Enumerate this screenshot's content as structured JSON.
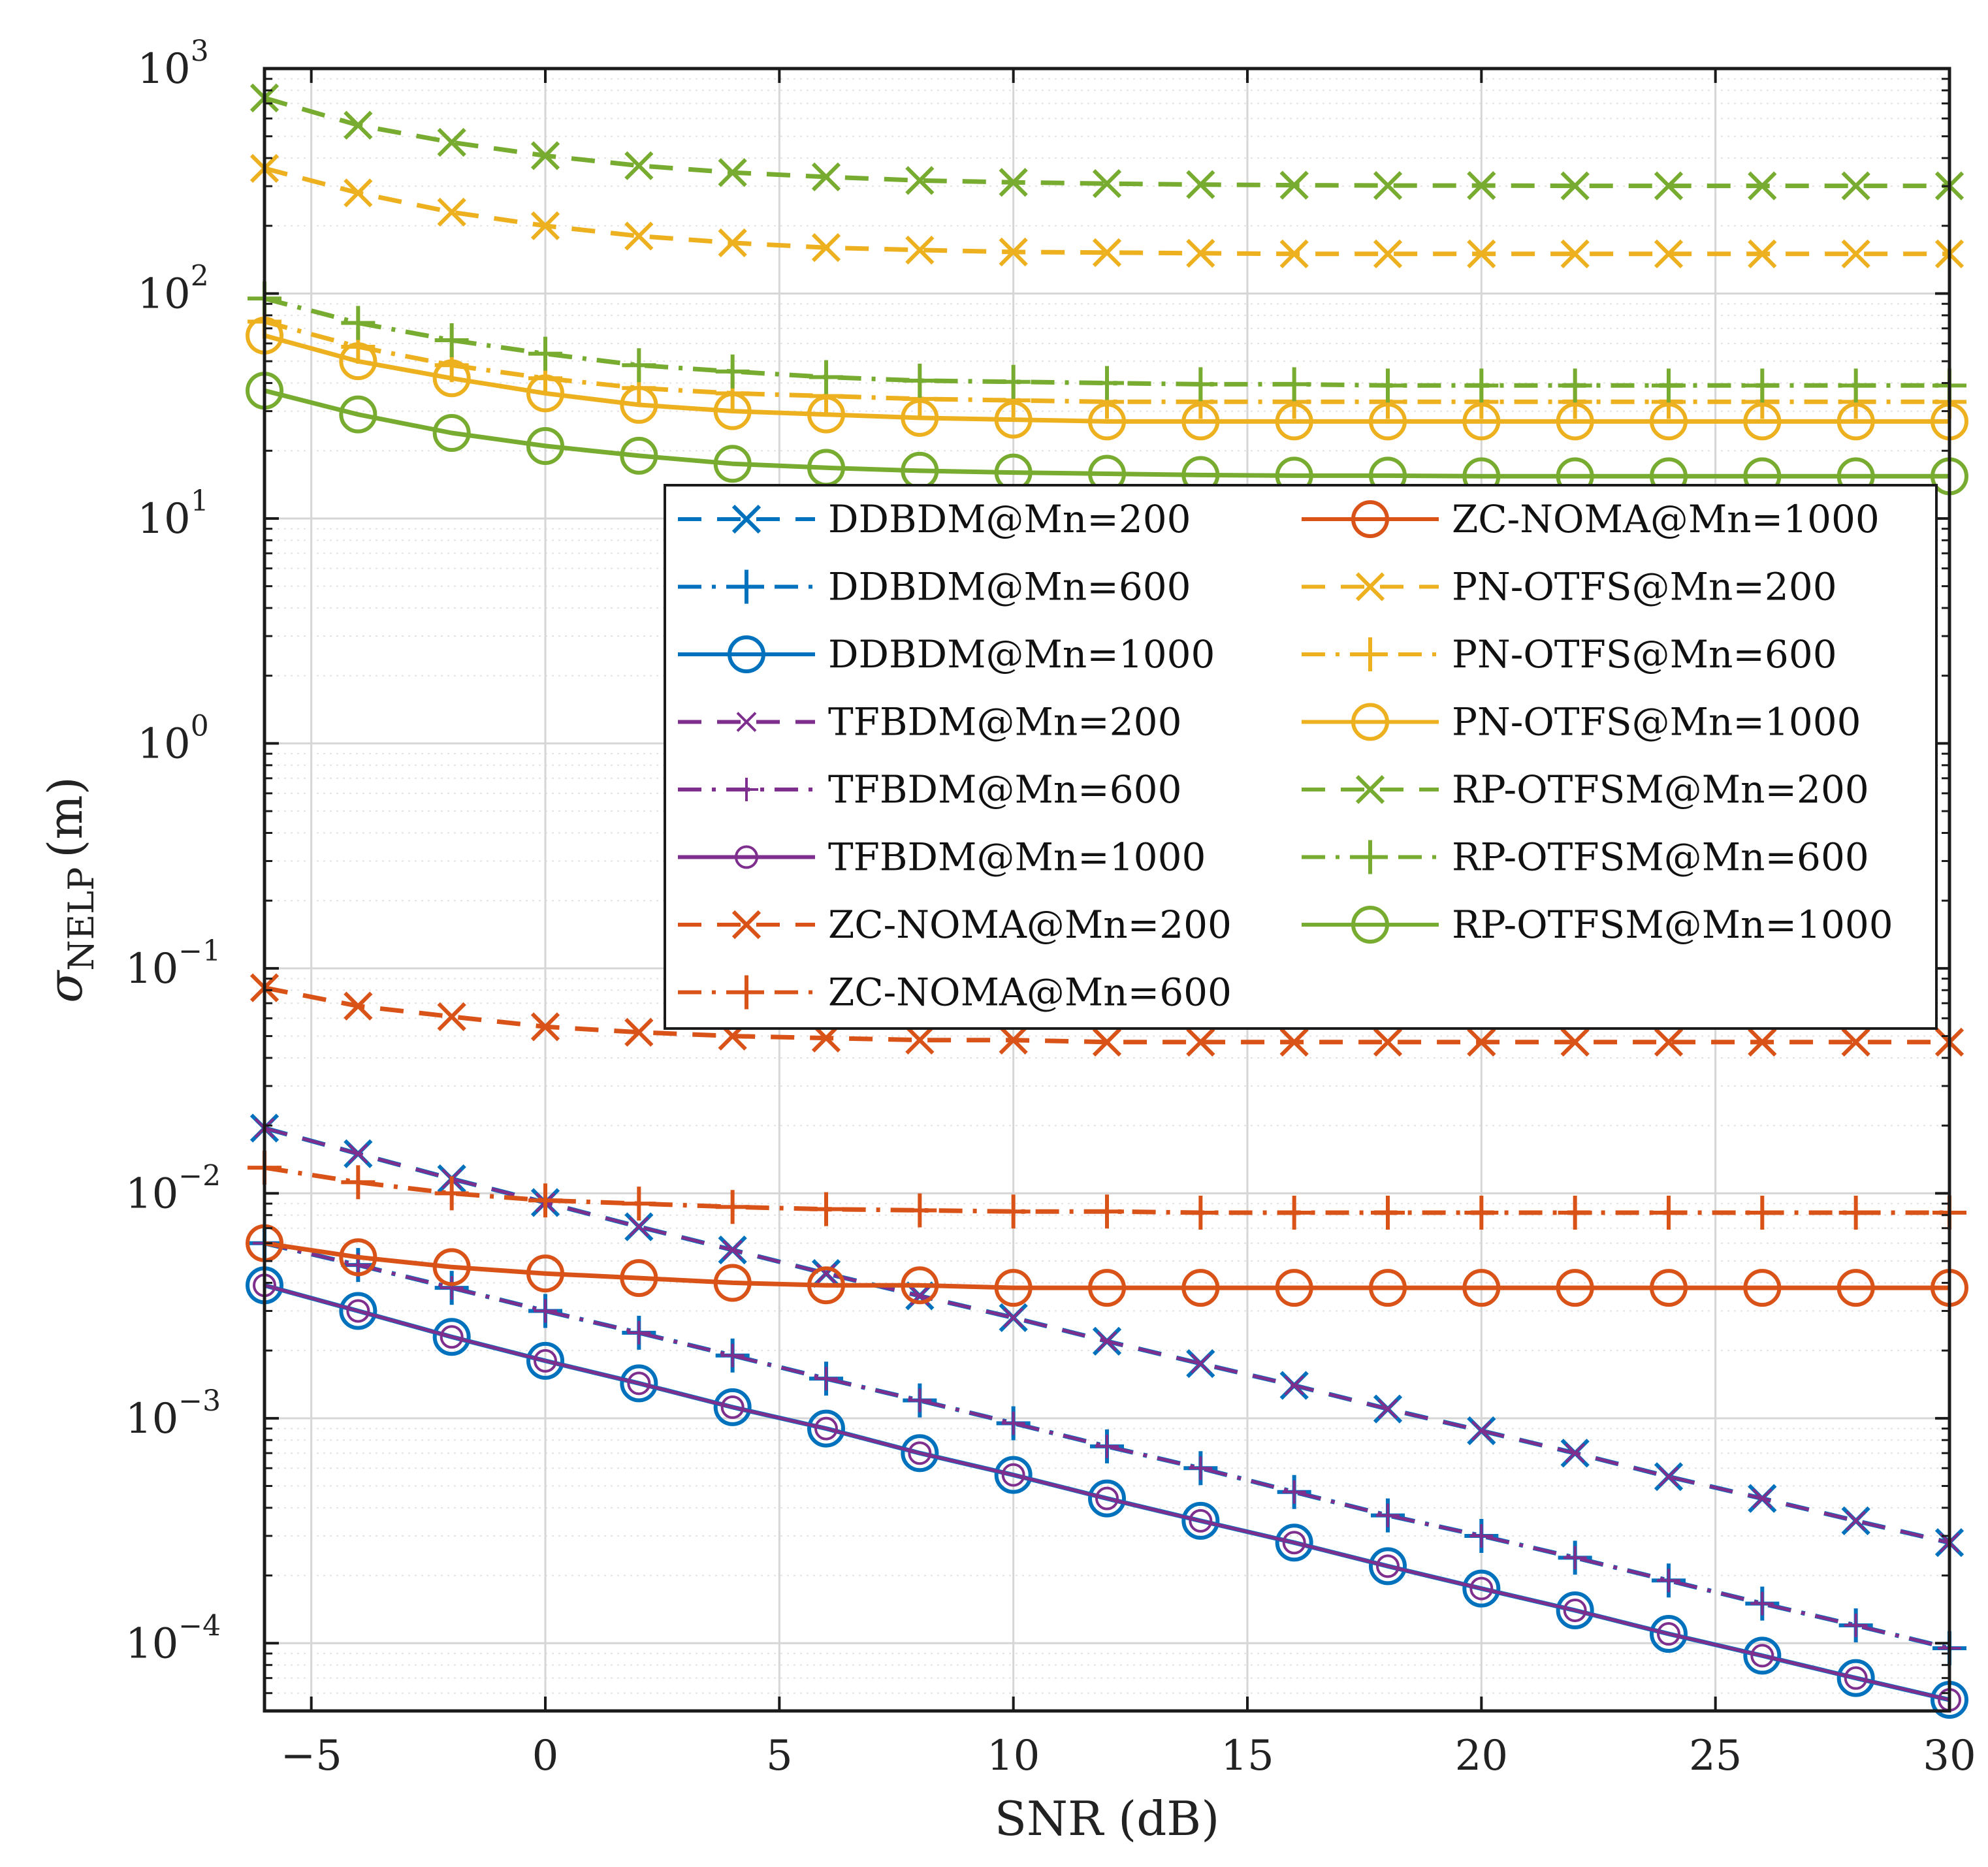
{
  "chart_data": {
    "type": "line",
    "title": "",
    "xlabel": "SNR (dB)",
    "ylabel_main": "σ",
    "ylabel_sub": "NELP",
    "ylabel_unit": "(m)",
    "xlim": [
      -6,
      30
    ],
    "ylim": [
      5e-05,
      1000
    ],
    "yscale": "log",
    "grid": true,
    "legend": "center-right, two columns",
    "xticks": [
      -5,
      0,
      5,
      10,
      15,
      20,
      25,
      30
    ],
    "xtick_labels": [
      "−5",
      "0",
      "5",
      "10",
      "15",
      "20",
      "25",
      "30"
    ],
    "yticks": [
      {
        "value": 1000,
        "base": "10",
        "exp": "3"
      },
      {
        "value": 100,
        "base": "10",
        "exp": "2"
      },
      {
        "value": 10,
        "base": "10",
        "exp": "1"
      },
      {
        "value": 1,
        "base": "10",
        "exp": "0"
      },
      {
        "value": 0.1,
        "base": "10",
        "exp": "−1"
      },
      {
        "value": 0.01,
        "base": "10",
        "exp": "−2"
      },
      {
        "value": 0.001,
        "base": "10",
        "exp": "−3"
      },
      {
        "value": 0.0001,
        "base": "10",
        "exp": "−4"
      }
    ],
    "x": [
      -6,
      -4,
      -2,
      0,
      2,
      4,
      6,
      8,
      10,
      12,
      14,
      16,
      18,
      20,
      22,
      24,
      26,
      28,
      30
    ],
    "series": [
      {
        "name": "DDBDM@Mn=200",
        "color": "#0072BD",
        "dash": "dash",
        "marker": "x",
        "values": [
          0.0195,
          0.015,
          0.0116,
          0.0091,
          0.0071,
          0.0056,
          0.0044,
          0.0035,
          0.0028,
          0.0022,
          0.00175,
          0.0014,
          0.0011,
          0.00088,
          0.0007,
          0.00055,
          0.00044,
          0.00035,
          0.00028
        ]
      },
      {
        "name": "DDBDM@Mn=600",
        "color": "#0072BD",
        "dash": "dashdot",
        "marker": "plus",
        "values": [
          0.006,
          0.0048,
          0.0038,
          0.003,
          0.0024,
          0.0019,
          0.0015,
          0.0012,
          0.00095,
          0.00075,
          0.0006,
          0.00047,
          0.00037,
          0.0003,
          0.00024,
          0.00019,
          0.00015,
          0.00012,
          9.5e-05
        ]
      },
      {
        "name": "DDBDM@Mn=1000",
        "color": "#0072BD",
        "dash": "solid",
        "marker": "circle",
        "values": [
          0.0039,
          0.003,
          0.0023,
          0.0018,
          0.00143,
          0.00112,
          0.0009,
          0.0007,
          0.00056,
          0.00044,
          0.00035,
          0.00028,
          0.00022,
          0.000175,
          0.00014,
          0.00011,
          8.8e-05,
          7e-05,
          5.6e-05
        ]
      },
      {
        "name": "TFBDM@Mn=200",
        "color": "#7E2F8E",
        "dash": "dash",
        "marker": "x-small",
        "values": [
          0.0195,
          0.015,
          0.0116,
          0.0091,
          0.0071,
          0.0056,
          0.0044,
          0.0035,
          0.0028,
          0.0022,
          0.00175,
          0.0014,
          0.0011,
          0.00088,
          0.0007,
          0.00055,
          0.00044,
          0.00035,
          0.00028
        ]
      },
      {
        "name": "TFBDM@Mn=600",
        "color": "#7E2F8E",
        "dash": "dashdot",
        "marker": "plus-small",
        "values": [
          0.006,
          0.0048,
          0.0038,
          0.003,
          0.0024,
          0.0019,
          0.0015,
          0.0012,
          0.00095,
          0.00075,
          0.0006,
          0.00047,
          0.00037,
          0.0003,
          0.00024,
          0.00019,
          0.00015,
          0.00012,
          9.5e-05
        ]
      },
      {
        "name": "TFBDM@Mn=1000",
        "color": "#7E2F8E",
        "dash": "solid",
        "marker": "circle-small",
        "values": [
          0.0039,
          0.003,
          0.0023,
          0.0018,
          0.00143,
          0.00112,
          0.0009,
          0.0007,
          0.00056,
          0.00044,
          0.00035,
          0.00028,
          0.00022,
          0.000175,
          0.00014,
          0.00011,
          8.8e-05,
          7e-05,
          5.6e-05
        ]
      },
      {
        "name": "ZC-NOMA@Mn=200",
        "color": "#D95319",
        "dash": "dash",
        "marker": "x",
        "values": [
          0.082,
          0.068,
          0.061,
          0.055,
          0.052,
          0.05,
          0.049,
          0.048,
          0.048,
          0.047,
          0.047,
          0.047,
          0.047,
          0.047,
          0.047,
          0.047,
          0.047,
          0.047,
          0.047
        ]
      },
      {
        "name": "ZC-NOMA@Mn=600",
        "color": "#D95319",
        "dash": "dashdot",
        "marker": "plus",
        "values": [
          0.013,
          0.0112,
          0.01,
          0.0093,
          0.009,
          0.0087,
          0.0085,
          0.0084,
          0.0083,
          0.0083,
          0.0082,
          0.0082,
          0.0082,
          0.0082,
          0.0082,
          0.0082,
          0.0082,
          0.0082,
          0.0082
        ]
      },
      {
        "name": "ZC-NOMA@Mn=1000",
        "color": "#D95319",
        "dash": "solid",
        "marker": "circle",
        "values": [
          0.006,
          0.0052,
          0.0047,
          0.0044,
          0.0042,
          0.004,
          0.0039,
          0.0039,
          0.0038,
          0.0038,
          0.0038,
          0.0038,
          0.0038,
          0.0038,
          0.0038,
          0.0038,
          0.0038,
          0.0038,
          0.0038
        ]
      },
      {
        "name": "PN-OTFS@Mn=200",
        "color": "#EDB120",
        "dash": "dash",
        "marker": "x",
        "values": [
          360,
          280,
          230,
          200,
          180,
          168,
          160,
          156,
          153,
          152,
          151,
          150,
          150,
          150,
          150,
          150,
          150,
          150,
          150
        ]
      },
      {
        "name": "PN-OTFS@Mn=600",
        "color": "#EDB120",
        "dash": "dashdot",
        "marker": "plus",
        "values": [
          75,
          58,
          48,
          42,
          38,
          36,
          35,
          34,
          33.5,
          33,
          33,
          33,
          33,
          33,
          33,
          33,
          33,
          33,
          33
        ]
      },
      {
        "name": "PN-OTFS@Mn=1000",
        "color": "#EDB120",
        "dash": "solid",
        "marker": "circle",
        "values": [
          65,
          50,
          42,
          36,
          32,
          30,
          29,
          28,
          27.5,
          27,
          27,
          27,
          27,
          27,
          27,
          27,
          27,
          27,
          27
        ]
      },
      {
        "name": "RP-OTFSM@Mn=200",
        "color": "#77AC30",
        "dash": "dash",
        "marker": "x",
        "values": [
          740,
          560,
          470,
          410,
          370,
          345,
          330,
          318,
          312,
          308,
          305,
          303,
          302,
          302,
          301,
          301,
          301,
          301,
          301
        ]
      },
      {
        "name": "RP-OTFSM@Mn=600",
        "color": "#77AC30",
        "dash": "dashdot",
        "marker": "plus",
        "values": [
          95,
          74,
          62,
          54,
          48,
          45,
          42.5,
          41,
          40.5,
          40,
          39.5,
          39.5,
          39,
          39,
          39,
          39,
          39,
          39,
          39
        ]
      },
      {
        "name": "RP-OTFSM@Mn=1000",
        "color": "#77AC30",
        "dash": "solid",
        "marker": "circle",
        "values": [
          37,
          29,
          24,
          21,
          19,
          17.5,
          16.8,
          16.3,
          16,
          15.8,
          15.6,
          15.5,
          15.5,
          15.4,
          15.4,
          15.4,
          15.4,
          15.4,
          15.4
        ]
      }
    ]
  }
}
